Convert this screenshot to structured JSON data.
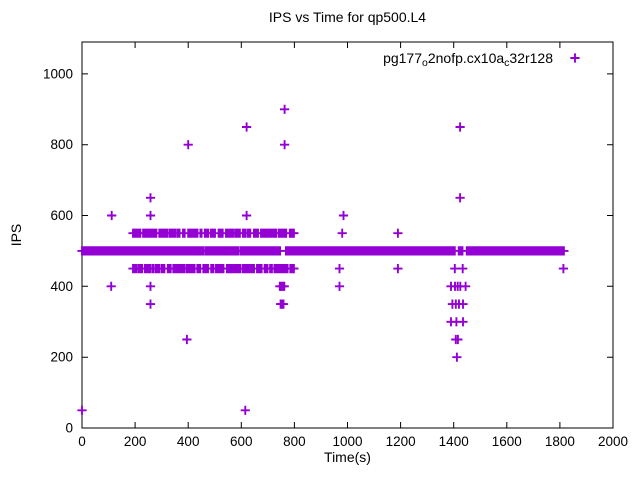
{
  "window": {
    "background": "#ffffff"
  },
  "colors": {
    "marker": "#9400D3",
    "axis": "#000000",
    "text": "#000000"
  },
  "chart_data": {
    "type": "scatter",
    "title": "IPS vs Time for qp500.L4",
    "xlabel": "Time(s)",
    "ylabel": "IPS",
    "x_range": [
      0,
      2000
    ],
    "y_range": [
      0,
      1090
    ],
    "x_ticks": [
      0,
      200,
      400,
      600,
      800,
      1000,
      1200,
      1400,
      1600,
      1800,
      2000
    ],
    "y_ticks": [
      0,
      200,
      400,
      600,
      800,
      1000
    ],
    "grid": false,
    "legend_position": "top-right-inside",
    "series": [
      {
        "name": "pg177_o2nofp.cx10a_c32r128",
        "label_segments": [
          {
            "text": "pg177",
            "sub": false
          },
          {
            "text": "o",
            "sub": true
          },
          {
            "text": "2nofp.cx10a",
            "sub": false
          },
          {
            "text": "c",
            "sub": true
          },
          {
            "text": "32r128",
            "sub": false
          }
        ],
        "color": "#9400D3",
        "marker": "plus",
        "solid_bands": [
          {
            "ips": 500,
            "step_s": 2,
            "ranges": [
              [
                0,
                1404
              ],
              [
                1419,
                1434
              ],
              [
                1449,
                1815
              ]
            ],
            "gaps": [
              [
                253,
                257
              ],
              [
                355,
                359
              ],
              [
                460,
                464
              ],
              [
                592,
                596
              ],
              [
                663,
                666
              ],
              [
                747,
                767
              ],
              [
                1116,
                1119
              ]
            ]
          }
        ],
        "dashed_bands": [
          {
            "ips": 550,
            "t_start": 192,
            "t_end": 795,
            "coverage": 0.6,
            "seed": 7
          },
          {
            "ips": 450,
            "t_start": 192,
            "t_end": 795,
            "coverage": 0.6,
            "seed": 11
          }
        ],
        "outlier_points": [
          [
            0,
            50
          ],
          [
            110,
            400
          ],
          [
            112,
            600
          ],
          [
            258,
            650
          ],
          [
            258,
            600
          ],
          [
            258,
            400
          ],
          [
            258,
            350
          ],
          [
            395,
            250
          ],
          [
            400,
            800
          ],
          [
            615,
            50
          ],
          [
            620,
            600
          ],
          [
            620,
            850
          ],
          [
            745,
            400
          ],
          [
            751,
            400
          ],
          [
            757,
            400
          ],
          [
            762,
            400
          ],
          [
            748,
            350
          ],
          [
            753,
            350
          ],
          [
            759,
            350
          ],
          [
            763,
            800
          ],
          [
            763,
            900
          ],
          [
            798,
            550
          ],
          [
            798,
            450
          ],
          [
            970,
            450
          ],
          [
            970,
            400
          ],
          [
            980,
            550
          ],
          [
            985,
            600
          ],
          [
            1190,
            550
          ],
          [
            1190,
            450
          ],
          [
            1390,
            300
          ],
          [
            1390,
            400
          ],
          [
            1395,
            350
          ],
          [
            1404,
            450
          ],
          [
            1405,
            400
          ],
          [
            1408,
            250
          ],
          [
            1408,
            350
          ],
          [
            1410,
            300
          ],
          [
            1412,
            200
          ],
          [
            1415,
            400
          ],
          [
            1416,
            250
          ],
          [
            1420,
            350
          ],
          [
            1424,
            650
          ],
          [
            1424,
            850
          ],
          [
            1425,
            400
          ],
          [
            1434,
            450
          ],
          [
            1435,
            300
          ],
          [
            1435,
            350
          ],
          [
            1445,
            400
          ],
          [
            1813,
            450
          ]
        ]
      }
    ]
  }
}
